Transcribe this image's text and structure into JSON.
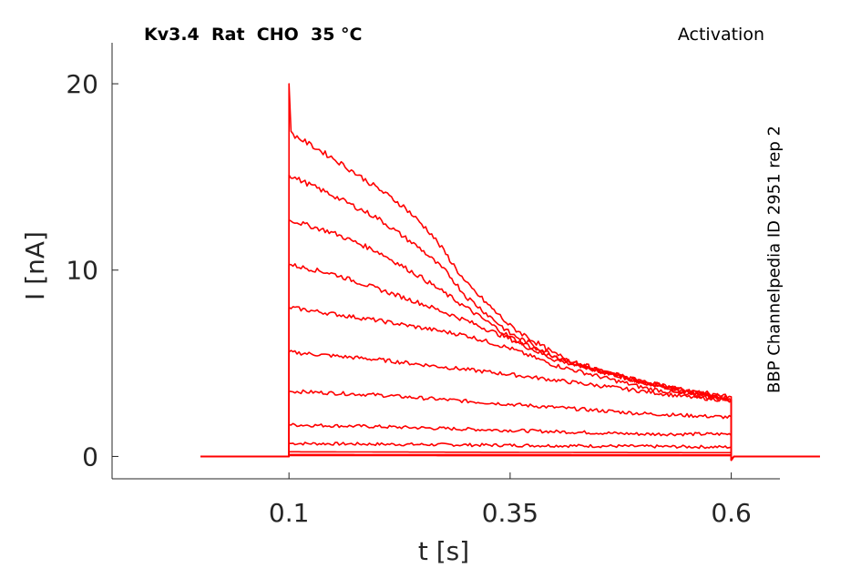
{
  "figure": {
    "title_left": "Kv3.4  Rat  CHO  35 °C",
    "title_right": "Activation",
    "side_label": "BBP Channelpedia ID 2951 rep 2"
  },
  "chart_data": {
    "type": "line",
    "xlabel": "t [s]",
    "ylabel": "I [nA]",
    "xlim": [
      -0.1,
      0.655
    ],
    "ylim": [
      -1.2,
      22.2
    ],
    "xticks": [
      0.1,
      0.35,
      0.6
    ],
    "xtick_labels": [
      "0.1",
      "0.35",
      "0.6"
    ],
    "yticks": [
      0,
      10,
      20
    ],
    "ytick_labels": [
      "0",
      "10",
      "20"
    ],
    "grid": false,
    "line_color": "#ff0000",
    "trace_time_range": [
      0.0,
      0.7
    ],
    "pulse_window": [
      0.1,
      0.6
    ],
    "series": [
      {
        "points": [
          [
            0.1,
            0.05
          ],
          [
            0.35,
            0.04
          ],
          [
            0.6,
            0.04
          ]
        ]
      },
      {
        "points": [
          [
            0.1,
            0.1
          ],
          [
            0.35,
            0.09
          ],
          [
            0.6,
            0.08
          ]
        ]
      },
      {
        "points": [
          [
            0.1,
            0.25
          ],
          [
            0.35,
            0.22
          ],
          [
            0.6,
            0.2
          ]
        ]
      },
      {
        "points": [
          [
            0.1,
            0.7
          ],
          [
            0.35,
            0.6
          ],
          [
            0.6,
            0.5
          ]
        ]
      },
      {
        "points": [
          [
            0.1,
            1.7
          ],
          [
            0.2,
            1.6
          ],
          [
            0.35,
            1.4
          ],
          [
            0.5,
            1.2
          ],
          [
            0.6,
            1.2
          ]
        ]
      },
      {
        "points": [
          [
            0.1,
            3.5
          ],
          [
            0.2,
            3.3
          ],
          [
            0.35,
            2.8
          ],
          [
            0.5,
            2.3
          ],
          [
            0.6,
            2.1
          ]
        ]
      },
      {
        "points": [
          [
            0.1,
            5.6
          ],
          [
            0.2,
            5.2
          ],
          [
            0.35,
            4.4
          ],
          [
            0.45,
            3.8
          ],
          [
            0.55,
            3.2
          ],
          [
            0.6,
            3.0
          ]
        ]
      },
      {
        "points": [
          [
            0.1,
            8.0
          ],
          [
            0.2,
            7.3
          ],
          [
            0.3,
            6.5
          ],
          [
            0.35,
            5.8
          ],
          [
            0.4,
            4.9
          ],
          [
            0.45,
            4.3
          ],
          [
            0.5,
            3.7
          ],
          [
            0.55,
            3.3
          ],
          [
            0.6,
            3.0
          ]
        ]
      },
      {
        "points": [
          [
            0.1,
            10.3
          ],
          [
            0.15,
            9.8
          ],
          [
            0.2,
            9.0
          ],
          [
            0.25,
            8.2
          ],
          [
            0.3,
            7.3
          ],
          [
            0.35,
            6.3
          ],
          [
            0.4,
            5.2
          ],
          [
            0.45,
            4.6
          ],
          [
            0.5,
            4.0
          ],
          [
            0.55,
            3.5
          ],
          [
            0.6,
            3.0
          ]
        ]
      },
      {
        "points": [
          [
            0.1,
            12.7
          ],
          [
            0.15,
            12.0
          ],
          [
            0.2,
            11.0
          ],
          [
            0.25,
            9.6
          ],
          [
            0.3,
            8.0
          ],
          [
            0.35,
            6.4
          ],
          [
            0.4,
            5.3
          ],
          [
            0.45,
            4.6
          ],
          [
            0.5,
            4.0
          ],
          [
            0.55,
            3.5
          ],
          [
            0.6,
            3.1
          ]
        ]
      },
      {
        "points": [
          [
            0.1,
            15.1
          ],
          [
            0.15,
            14.0
          ],
          [
            0.2,
            12.8
          ],
          [
            0.25,
            11.1
          ],
          [
            0.28,
            9.8
          ],
          [
            0.3,
            8.6
          ],
          [
            0.35,
            6.6
          ],
          [
            0.4,
            5.4
          ],
          [
            0.45,
            4.6
          ],
          [
            0.5,
            4.0
          ],
          [
            0.55,
            3.5
          ],
          [
            0.6,
            3.1
          ]
        ]
      },
      {
        "points": [
          [
            0.1,
            17.4
          ],
          [
            0.15,
            16.0
          ],
          [
            0.2,
            14.4
          ],
          [
            0.23,
            13.4
          ],
          [
            0.26,
            12.0
          ],
          [
            0.28,
            10.7
          ],
          [
            0.3,
            9.3
          ],
          [
            0.35,
            7.0
          ],
          [
            0.4,
            5.5
          ],
          [
            0.45,
            4.6
          ],
          [
            0.5,
            4.0
          ],
          [
            0.55,
            3.5
          ],
          [
            0.6,
            3.2
          ]
        ]
      }
    ],
    "onset_peak": 20.0
  }
}
